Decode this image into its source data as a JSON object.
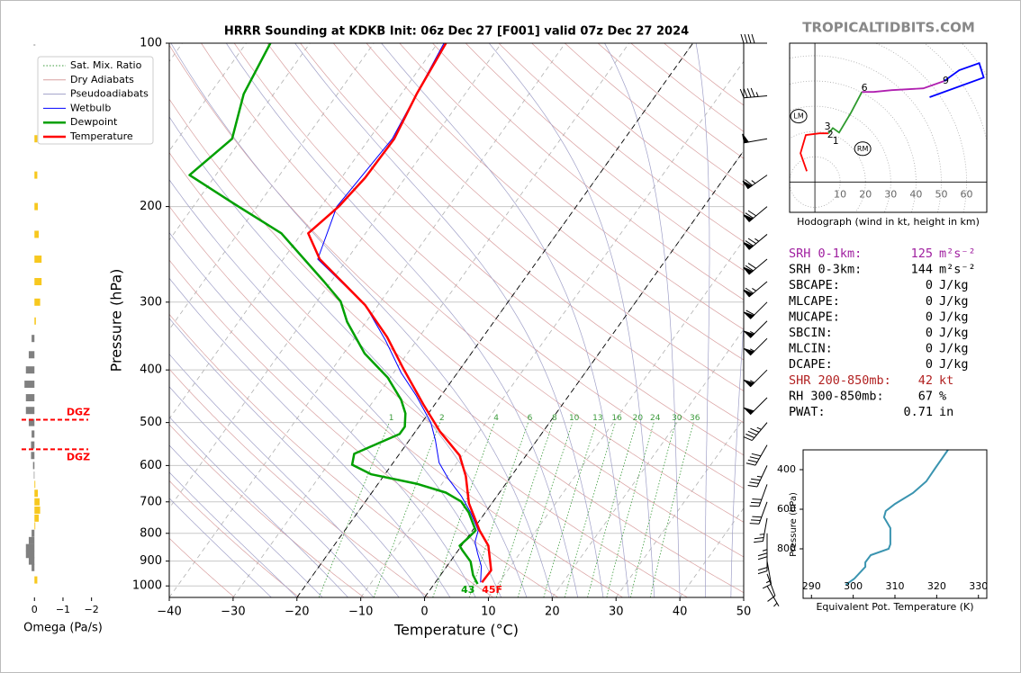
{
  "chart_data": [
    {
      "type": "skewt",
      "title": "HRRR Sounding at KDKB Init: 06z Dec 27 [F001] valid 07z Dec 27 2024",
      "xlabel": "Temperature (°C)",
      "ylabel": "Pressure (hPa)",
      "xlim": [
        -40,
        50
      ],
      "xticks": [
        {
          "value": -40,
          "label": "−40"
        },
        {
          "value": -30,
          "label": "−30"
        },
        {
          "value": -20,
          "label": "−20"
        },
        {
          "value": -10,
          "label": "−10"
        },
        0,
        10,
        20,
        30,
        40,
        50
      ],
      "ylim": [
        1050,
        100
      ],
      "log_scale": true,
      "yticks": [
        100,
        200,
        300,
        400,
        500,
        600,
        700,
        800,
        900,
        1000
      ],
      "grid": true,
      "legend": "upper left",
      "dashed_isotherms": [
        -20,
        0
      ],
      "mixing_ratios": [
        1,
        2,
        4,
        6,
        8,
        10,
        13,
        16,
        20,
        24,
        30,
        36
      ],
      "reference_lines": [
        {
          "name": "Sat. Mix. Ratio",
          "color": "#3a9a3a",
          "dash": "dotted"
        },
        {
          "name": "Dry Adiabats",
          "color": "#d9a0a0",
          "dash": "solid"
        },
        {
          "name": "Pseudoadiabats",
          "color": "#a0a0c8",
          "dash": "solid"
        }
      ],
      "series": [
        {
          "name": "Wetbulb",
          "color": "#0000ff",
          "width": 1,
          "pressure": [
            100,
            150,
            200,
            250,
            304,
            352,
            405,
            446,
            500,
            539,
            593,
            633,
            683,
            732,
            790,
            830,
            869,
            920,
            985
          ],
          "values": [
            -59.0,
            -56.4,
            -57.5,
            -54.6,
            -42.0,
            -35.0,
            -28.8,
            -23.9,
            -18.6,
            -15.9,
            -12.8,
            -9.7,
            -5.6,
            -2.3,
            0.9,
            1.7,
            3.3,
            5.4,
            7.1
          ]
        },
        {
          "name": "Dewpoint",
          "color": "#00a000",
          "width": 2.5,
          "surface_label": "43",
          "pressure": [
            100,
            124,
            150,
            175,
            200,
            224,
            275,
            299,
            326,
            373,
            413,
            454,
            481,
            509,
            525,
            571,
            598,
            623,
            648,
            673,
            699,
            732,
            790,
            814,
            843,
            859,
            902,
            955,
            992
          ],
          "values": [
            -86.2,
            -84.7,
            -81.5,
            -84.1,
            -72.9,
            -63.2,
            -51.1,
            -46.3,
            -43.0,
            -36.7,
            -30.4,
            -25.8,
            -23.6,
            -22.2,
            -22.2,
            -27.1,
            -26.2,
            -22.1,
            -14.0,
            -8.4,
            -5.0,
            -2.6,
            0.5,
            0.2,
            -0.3,
            0.6,
            3.2,
            5.1,
            6.8
          ]
        },
        {
          "name": "Temperature",
          "color": "#ff0000",
          "width": 2.5,
          "surface_label": "45F",
          "pressure": [
            100,
            124,
            150,
            177,
            200,
            224,
            250,
            275,
            304,
            348,
            398,
            463,
            519,
            575,
            628,
            704,
            790,
            843,
            936,
            985
          ],
          "values": [
            -58.7,
            -57.6,
            -56.1,
            -56.3,
            -57.2,
            -59.0,
            -54.3,
            -48.3,
            -42.0,
            -35.0,
            -28.9,
            -21.8,
            -16.2,
            -10.4,
            -7.1,
            -3.6,
            1.1,
            4.2,
            7.4,
            7.3
          ]
        }
      ],
      "winds": {
        "pressure": [
          100,
          125,
          150,
          175,
          200,
          225,
          250,
          275,
          300,
          325,
          350,
          400,
          450,
          500,
          550,
          600,
          650,
          700,
          750,
          800,
          850,
          900,
          950,
          1000
        ],
        "direction": [
          270,
          265,
          260,
          235,
          230,
          230,
          230,
          230,
          225,
          225,
          225,
          225,
          225,
          220,
          210,
          205,
          200,
          200,
          190,
          180,
          180,
          170,
          160,
          150
        ],
        "speed": [
          40,
          45,
          50,
          65,
          70,
          75,
          70,
          65,
          60,
          55,
          55,
          55,
          50,
          45,
          40,
          35,
          30,
          30,
          25,
          25,
          20,
          15,
          10,
          5
        ]
      }
    },
    {
      "type": "omega",
      "xlabel": "Omega (Pa/s)",
      "xlim": [
        0.45,
        -2.2
      ],
      "xticks": [
        0,
        {
          "value": -1,
          "label": "−1"
        },
        {
          "value": -2,
          "label": "−2"
        }
      ],
      "ylim": [
        1050,
        100
      ],
      "log_scale": true,
      "color_negative": "#f7c81e",
      "color_positive": "#808080",
      "pressure": [
        150,
        175,
        200,
        225,
        250,
        275,
        300,
        325,
        350,
        375,
        400,
        425,
        450,
        475,
        500,
        525,
        550,
        575,
        600,
        625,
        650,
        675,
        700,
        725,
        750,
        775,
        800,
        825,
        850,
        875,
        900,
        925,
        975
      ],
      "values": [
        -0.1,
        -0.1,
        -0.12,
        -0.15,
        -0.25,
        -0.25,
        -0.2,
        -0.05,
        0.1,
        0.2,
        0.3,
        0.35,
        0.3,
        0.3,
        0.2,
        0.1,
        0.12,
        0.12,
        0.05,
        0.02,
        -0.03,
        -0.12,
        -0.18,
        -0.2,
        -0.15,
        -0.03,
        0.1,
        0.2,
        0.3,
        0.3,
        0.2,
        0.1,
        -0.1
      ],
      "dgz": {
        "label": "DGZ",
        "color": "#ff0000",
        "pressure": [
          494,
          560
        ]
      }
    },
    {
      "type": "hodograph",
      "xlabel": "Hodograph (wind in kt, height in km)",
      "xlim": [
        -10,
        68
      ],
      "ylim": [
        -12,
        55
      ],
      "xticks": [
        10,
        20,
        30,
        40,
        50,
        60
      ],
      "series": [
        {
          "color": "#ff0000",
          "u": [
            -3.2,
            -5.7,
            -3.6,
            1.8,
            5.4
          ],
          "v": [
            4.3,
            11.4,
            18.6,
            19.3,
            19.3
          ]
        },
        {
          "color": "#2e9a2e",
          "u": [
            5.4,
            7.1,
            9.6,
            14.3,
            18.6
          ],
          "v": [
            19.3,
            21.4,
            19.6,
            27.5,
            35.7
          ]
        },
        {
          "color": "#b020b0",
          "u": [
            18.6,
            23.2,
            30.4,
            42.9,
            51.1
          ],
          "v": [
            35.7,
            35.7,
            36.4,
            37.1,
            40.0
          ]
        },
        {
          "color": "#0000ff",
          "u": [
            51.1,
            57.1,
            65.0,
            66.8,
            45.4
          ],
          "v": [
            40.0,
            44.3,
            47.1,
            41.4,
            33.6
          ]
        }
      ],
      "markers": [
        {
          "label": "1",
          "u": 8.2,
          "v": 16.1
        },
        {
          "label": "2",
          "u": 6.1,
          "v": 18.6
        },
        {
          "label": "3",
          "u": 5.0,
          "v": 21.8
        },
        {
          "label": "6",
          "u": 19.6,
          "v": 37.1
        },
        {
          "label": "9",
          "u": 51.8,
          "v": 40.0
        }
      ],
      "storm_motions": [
        {
          "label": "LM",
          "u": -6.4,
          "v": 26.1
        },
        {
          "label": "RM",
          "u": 18.9,
          "v": 13.2
        }
      ]
    },
    {
      "type": "thetae",
      "xlabel": "Equivalent Pot. Temperature (K)",
      "ylabel": "Pressure (hPa)",
      "xlim": [
        288,
        332
      ],
      "xticks": [
        290,
        300,
        310,
        320,
        330
      ],
      "ylim": [
        1050,
        300
      ],
      "yticks": [
        400,
        600,
        800
      ],
      "color": "#3a94b0",
      "pressure": [
        300,
        391,
        459,
        518,
        573,
        609,
        641,
        695,
        777,
        800,
        832,
        868,
        891,
        950,
        982
      ],
      "values": [
        322.7,
        319.7,
        317.5,
        314.3,
        310.0,
        307.8,
        307.4,
        308.9,
        308.9,
        308.5,
        304.2,
        302.9,
        302.9,
        300.3,
        298.2
      ]
    }
  ],
  "watermark": "TROPICALTIDBITS.COM",
  "stats": [
    {
      "label": "SRH 0-1km:",
      "value": "125",
      "unit": "m²s⁻²",
      "color": "#a020a0"
    },
    {
      "label": "SRH 0-3km:",
      "value": "144",
      "unit": "m²s⁻²",
      "color": "#000000"
    },
    {
      "label": "SBCAPE:",
      "value": "0",
      "unit": "J/kg",
      "color": "#000000"
    },
    {
      "label": "MLCAPE:",
      "value": "0",
      "unit": "J/kg",
      "color": "#000000"
    },
    {
      "label": "MUCAPE:",
      "value": "0",
      "unit": "J/kg",
      "color": "#000000"
    },
    {
      "label": "SBCIN:",
      "value": "0",
      "unit": "J/kg",
      "color": "#000000"
    },
    {
      "label": "MLCIN:",
      "value": "0",
      "unit": "J/kg",
      "color": "#000000"
    },
    {
      "label": "DCAPE:",
      "value": "0",
      "unit": "J/kg",
      "color": "#000000"
    },
    {
      "label": "SHR 200-850mb:",
      "value": "42",
      "unit": "kt",
      "color": "#b22222"
    },
    {
      "label": "RH 300-850mb:",
      "value": "67",
      "unit": "%",
      "color": "#000000"
    },
    {
      "label": "PWAT:",
      "value": "0.71",
      "unit": "in",
      "color": "#000000"
    }
  ]
}
